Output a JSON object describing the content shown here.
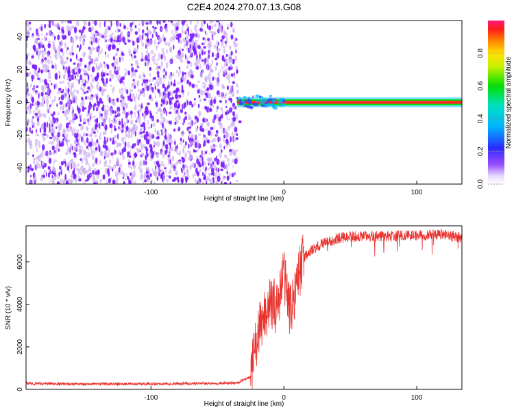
{
  "title": "C2E4.2024.270.07.13.G08",
  "colors": {
    "series": "#e8322e",
    "signal_core": "#ff2a2a",
    "signal_edge": "#00c8ff",
    "noise_strong": "#7a1aff",
    "noise_weak": "#c8a8f0"
  },
  "colorbar": {
    "label": "Normalized spectral amplitude",
    "ticks": [
      "0.0",
      "0.2",
      "0.4",
      "0.6",
      "0.8"
    ],
    "range": [
      0,
      1
    ]
  },
  "chart_data": [
    {
      "type": "heatmap",
      "xlabel": "Height of straight line (km)",
      "ylabel": "Frequency (Hz)",
      "xlim": [
        -194,
        134
      ],
      "ylim": [
        -50,
        50
      ],
      "xticks": [
        "-100",
        "0",
        "100"
      ],
      "yticks": [
        "-40",
        "-20",
        "0",
        "20",
        "40"
      ],
      "regions": [
        {
          "x_range": [
            -194,
            -35
          ],
          "content": "broadband noise",
          "amplitude_range": [
            0.0,
            0.2
          ]
        },
        {
          "x_range": [
            -35,
            134
          ],
          "content": "narrow band at 0 Hz",
          "frequency_width_hz": 3,
          "amplitude_range": [
            0.6,
            1.0
          ]
        }
      ]
    },
    {
      "type": "line",
      "xlabel": "Height of straight line (km)",
      "ylabel": "SNR (10 * v/v)",
      "xlim": [
        -194,
        134
      ],
      "ylim": [
        0,
        7700
      ],
      "xticks": [
        "-100",
        "0",
        "100"
      ],
      "yticks": [
        "0",
        "2000",
        "4000",
        "6000"
      ],
      "series": [
        {
          "x": [
            -194,
            -150,
            -100,
            -50,
            -35,
            -25,
            -22,
            -20,
            -15,
            -10,
            -5,
            0,
            5,
            10,
            15,
            20,
            30,
            40,
            50,
            60,
            80,
            100,
            120,
            134
          ],
          "y": [
            280,
            250,
            260,
            290,
            300,
            600,
            1800,
            2400,
            3500,
            4000,
            3900,
            5500,
            3600,
            5200,
            6200,
            6500,
            6900,
            7100,
            7200,
            7200,
            7200,
            7250,
            7300,
            7100
          ]
        }
      ]
    }
  ]
}
